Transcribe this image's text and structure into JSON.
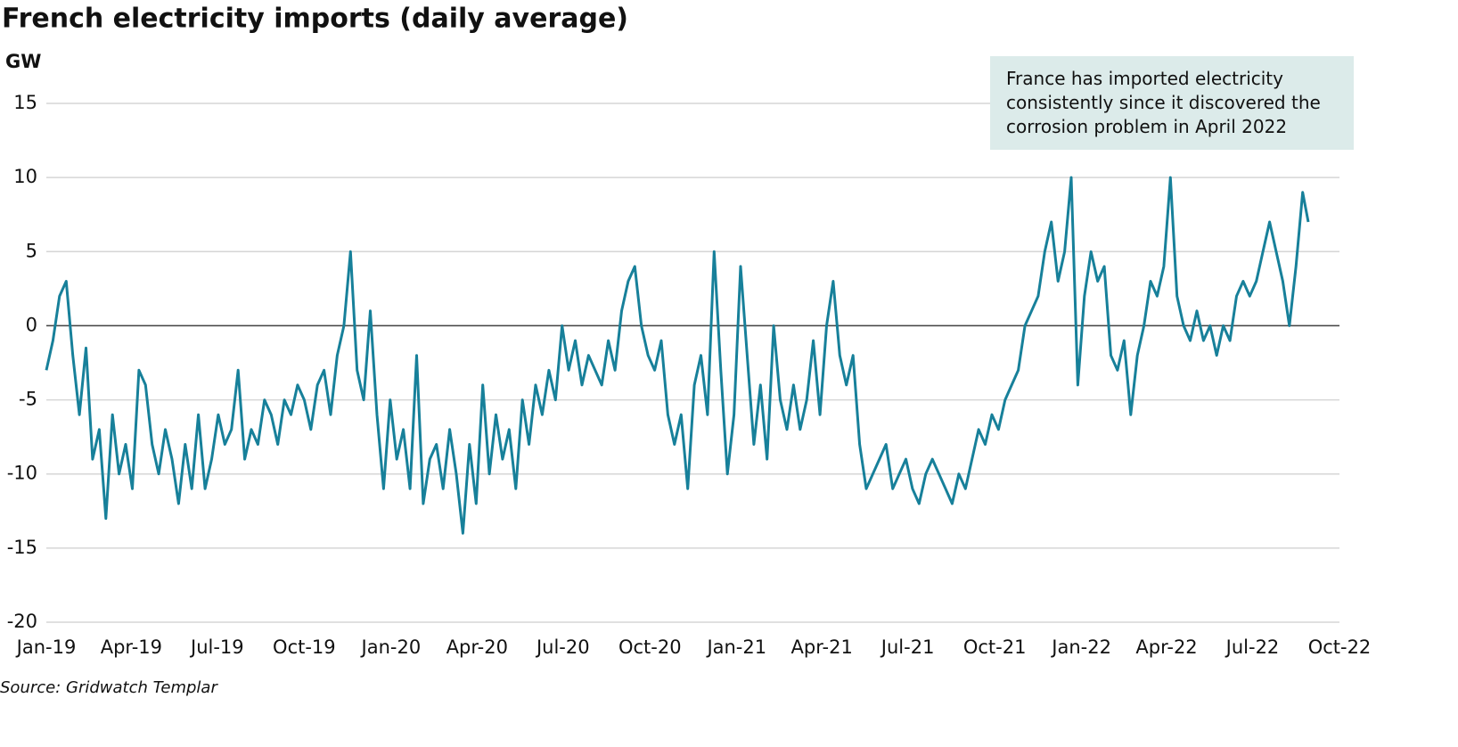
{
  "chart_data": {
    "type": "line",
    "title": "French electricity imports (daily average)",
    "y_label": "GW",
    "source": "Source: Gridwatch Templar",
    "annotation": "France has imported electricity consistently since it discovered the corrosion problem in April 2022",
    "grid": true,
    "xlim": [
      0,
      1369
    ],
    "xticks": [
      {
        "value": 0,
        "label": "Jan-19"
      },
      {
        "value": 90,
        "label": "Apr-19"
      },
      {
        "value": 181,
        "label": "Jul-19"
      },
      {
        "value": 273,
        "label": "Oct-19"
      },
      {
        "value": 365,
        "label": "Jan-20"
      },
      {
        "value": 456,
        "label": "Apr-20"
      },
      {
        "value": 547,
        "label": "Jul-20"
      },
      {
        "value": 639,
        "label": "Oct-20"
      },
      {
        "value": 731,
        "label": "Jan-21"
      },
      {
        "value": 821,
        "label": "Apr-21"
      },
      {
        "value": 912,
        "label": "Jul-21"
      },
      {
        "value": 1004,
        "label": "Oct-21"
      },
      {
        "value": 1096,
        "label": "Jan-22"
      },
      {
        "value": 1186,
        "label": "Apr-22"
      },
      {
        "value": 1277,
        "label": "Jul-22"
      },
      {
        "value": 1369,
        "label": "Oct-22"
      }
    ],
    "ylim": [
      -20,
      15
    ],
    "yticks": [
      -20,
      -15,
      -10,
      -5,
      0,
      5,
      10,
      15
    ],
    "x": [
      0,
      7,
      14,
      21,
      28,
      35,
      42,
      49,
      56,
      63,
      70,
      77,
      84,
      91,
      98,
      105,
      112,
      119,
      126,
      133,
      140,
      147,
      154,
      161,
      168,
      175,
      182,
      189,
      196,
      203,
      210,
      217,
      224,
      231,
      238,
      245,
      252,
      259,
      266,
      273,
      280,
      287,
      294,
      301,
      308,
      315,
      322,
      329,
      336,
      343,
      350,
      357,
      364,
      371,
      378,
      385,
      392,
      399,
      406,
      413,
      420,
      427,
      434,
      441,
      448,
      455,
      462,
      469,
      476,
      483,
      490,
      497,
      504,
      511,
      518,
      525,
      532,
      539,
      546,
      553,
      560,
      567,
      574,
      581,
      588,
      595,
      602,
      609,
      616,
      623,
      630,
      637,
      644,
      651,
      658,
      665,
      672,
      679,
      686,
      693,
      700,
      707,
      714,
      721,
      728,
      735,
      742,
      749,
      756,
      763,
      770,
      777,
      784,
      791,
      798,
      805,
      812,
      819,
      826,
      833,
      840,
      847,
      854,
      861,
      868,
      875,
      882,
      889,
      896,
      903,
      910,
      917,
      924,
      931,
      938,
      945,
      952,
      959,
      966,
      973,
      980,
      987,
      994,
      1001,
      1008,
      1015,
      1022,
      1029,
      1036,
      1043,
      1050,
      1057,
      1064,
      1071,
      1078,
      1085,
      1092,
      1099,
      1106,
      1113,
      1120,
      1127,
      1134,
      1141,
      1148,
      1155,
      1162,
      1169,
      1176,
      1183,
      1190,
      1197,
      1204,
      1211,
      1218,
      1225,
      1232,
      1239,
      1246,
      1253,
      1260,
      1267,
      1274,
      1281,
      1288,
      1295,
      1302,
      1309,
      1316,
      1323,
      1330,
      1336
    ],
    "series": [
      {
        "name": "Imports",
        "color": "#17809a",
        "values": [
          -3,
          -1,
          2,
          3,
          -2,
          -6,
          -1.5,
          -9,
          -7,
          -13,
          -6,
          -10,
          -8,
          -11,
          -3,
          -4,
          -8,
          -10,
          -7,
          -9,
          -12,
          -8,
          -11,
          -6,
          -11,
          -9,
          -6,
          -8,
          -7,
          -3,
          -9,
          -7,
          -8,
          -5,
          -6,
          -8,
          -5,
          -6,
          -4,
          -5,
          -7,
          -4,
          -3,
          -6,
          -2,
          0,
          5,
          -3,
          -5,
          1,
          -6,
          -11,
          -5,
          -9,
          -7,
          -11,
          -2,
          -12,
          -9,
          -8,
          -11,
          -7,
          -10,
          -14,
          -8,
          -12,
          -4,
          -10,
          -6,
          -9,
          -7,
          -11,
          -5,
          -8,
          -4,
          -6,
          -3,
          -5,
          0,
          -3,
          -1,
          -4,
          -2,
          -3,
          -4,
          -1,
          -3,
          1,
          3,
          4,
          0,
          -2,
          -3,
          -1,
          -6,
          -8,
          -6,
          -11,
          -4,
          -2,
          -6,
          5,
          -3,
          -10,
          -6,
          4,
          -2,
          -8,
          -4,
          -9,
          0,
          -5,
          -7,
          -4,
          -7,
          -5,
          -1,
          -6,
          0,
          3,
          -2,
          -4,
          -2,
          -8,
          -11,
          -10,
          -9,
          -8,
          -11,
          -10,
          -9,
          -11,
          -12,
          -10,
          -9,
          -10,
          -11,
          -12,
          -10,
          -11,
          -9,
          -7,
          -8,
          -6,
          -7,
          -5,
          -4,
          -3,
          0,
          1,
          2,
          5,
          7,
          3,
          5,
          10,
          -4,
          2,
          5,
          3,
          4,
          -2,
          -3,
          -1,
          -6,
          -2,
          0,
          3,
          2,
          4,
          10,
          2,
          0,
          -1,
          1,
          -1,
          0,
          -2,
          0,
          -1,
          2,
          3,
          2,
          3,
          5,
          7,
          5,
          3,
          0,
          4,
          9,
          7
        ]
      }
    ]
  }
}
